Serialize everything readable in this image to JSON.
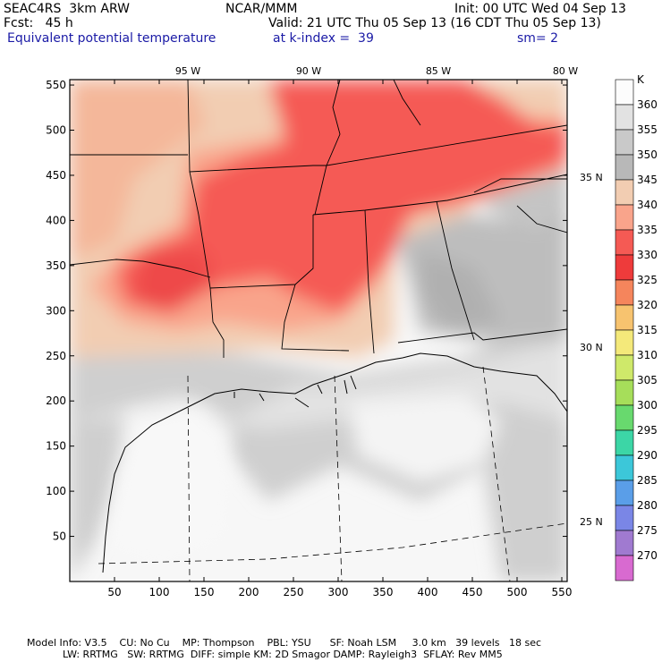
{
  "header": {
    "model_name": "SEAC4RS  3km ARW",
    "center": "NCAR/MMM",
    "init": "Init: 00 UTC Wed 04 Sep 13",
    "fcst": "Fcst:   45 h",
    "valid": "Valid: 21 UTC Thu 05 Sep 13 (16 CDT Thu 05 Sep 13)",
    "field": "Equivalent potential temperature",
    "level": "at k-index =  39",
    "smoothing": "sm= 2"
  },
  "colorbar": {
    "unit": "K",
    "levels": [
      {
        "label": "360",
        "color": "#fcfcfc"
      },
      {
        "label": "355",
        "color": "#e2e2e2"
      },
      {
        "label": "350",
        "color": "#c9c9c9"
      },
      {
        "label": "345",
        "color": "#b8b8b8"
      },
      {
        "label": "340",
        "color": "#f2cdb2"
      },
      {
        "label": "335",
        "color": "#f9a48b"
      },
      {
        "label": "330",
        "color": "#f55a54"
      },
      {
        "label": "325",
        "color": "#ee3b3b"
      },
      {
        "label": "320",
        "color": "#f5855c"
      },
      {
        "label": "315",
        "color": "#f7c36f"
      },
      {
        "label": "310",
        "color": "#f4e97a"
      },
      {
        "label": "305",
        "color": "#cfe96a"
      },
      {
        "label": "300",
        "color": "#a6de5a"
      },
      {
        "label": "295",
        "color": "#68d96e"
      },
      {
        "label": "290",
        "color": "#3cd6a6"
      },
      {
        "label": "285",
        "color": "#3cc7d9"
      },
      {
        "label": "280",
        "color": "#5a9ee8"
      },
      {
        "label": "275",
        "color": "#7a86e6"
      },
      {
        "label": "270",
        "color": "#a07ad0"
      },
      {
        "label": "",
        "color": "#d86ad0"
      }
    ]
  },
  "axes": {
    "x_ticks": [
      "50",
      "100",
      "150",
      "200",
      "250",
      "300",
      "350",
      "400",
      "450",
      "500",
      "550"
    ],
    "y_ticks": [
      "50",
      "100",
      "150",
      "200",
      "250",
      "300",
      "350",
      "400",
      "450",
      "500",
      "550"
    ],
    "lon_labels": [
      "95 W",
      "90 W",
      "85 W",
      "80 W"
    ],
    "lat_labels": [
      "35 N",
      "30 N",
      "25 N"
    ]
  },
  "footer": {
    "line1": "Model Info: V3.5    CU: No Cu    MP: Thompson    PBL: YSU      SF: Noah LSM     3.0 km   39 levels   18 sec",
    "line2": "LW: RRTMG   SW: RRTMG  DIFF: simple KM: 2D Smagor DAMP: Rayleigh3  SFLAY: Rev MM5"
  }
}
